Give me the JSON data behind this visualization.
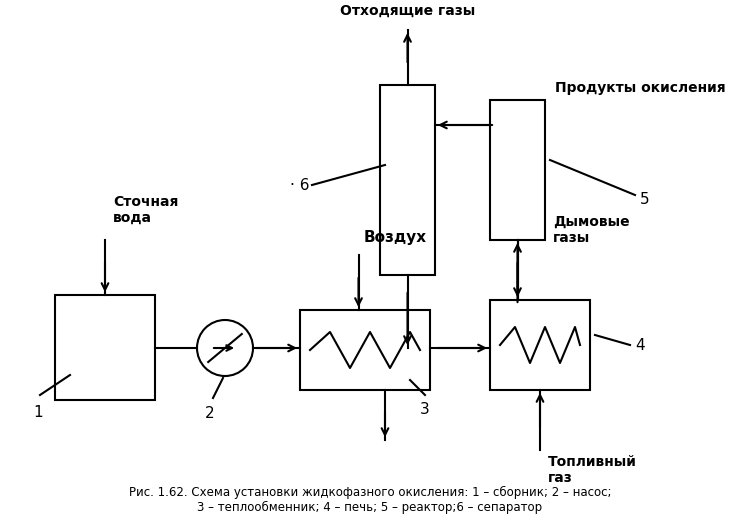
{
  "caption": "Рис. 1.62. Схема установки жидкофазного окисления: 1 – сборник; 2 – насос;\n3 – теплообменник; 4 – печь; 5 – реактор;6 – сепаратор",
  "background_color": "#ffffff",
  "labels": {
    "stocznaya_voda": "Сточная\nвода",
    "vozdukh": "Воздух",
    "otkhodyashchie_gazy": "Отходящие газы",
    "produkty_okisleniya": "Продукты окисления",
    "dymovye_gazy": "Дымовые\nгазы",
    "toplivny_gaz": "Топливный\nгаз",
    "num1": "1",
    "num2": "2",
    "num3": "3",
    "num4": "4",
    "num5": "5",
    "num6": "· 6"
  },
  "line_color": "#000000",
  "lw": 1.5
}
